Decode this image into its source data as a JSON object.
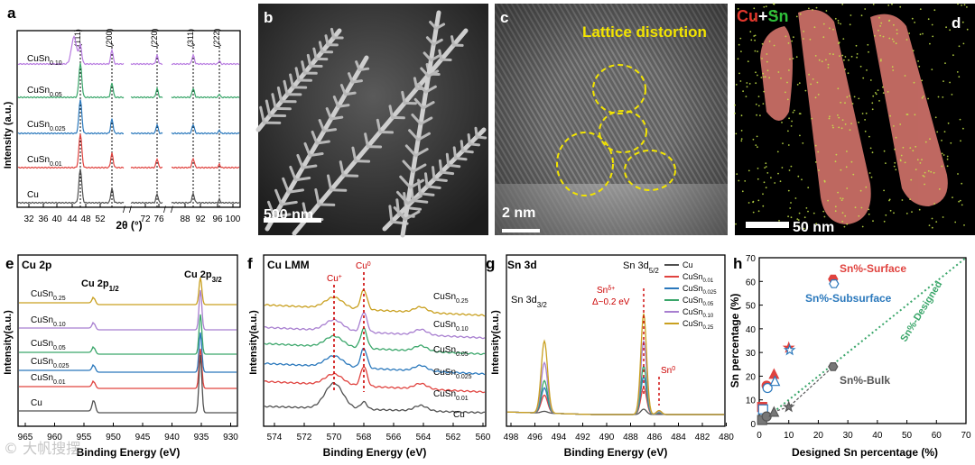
{
  "colors": {
    "cu": "#505050",
    "s001": "#e0433f",
    "s0025": "#2a78bc",
    "s005": "#3aa66a",
    "s010": "#a87fd0",
    "s025": "#c9a020",
    "purple": "#b87be0",
    "green_dot": "#2f8f3a"
  },
  "panel_a": {
    "label": "a",
    "peaks": [
      "(111)",
      "(200)",
      "(220)",
      "(311)",
      "(222)"
    ],
    "samples": [
      "Cu",
      "CuSn",
      "CuSn",
      "CuSn",
      "CuSn"
    ],
    "subs": [
      "",
      "0.01",
      "0.025",
      "0.05",
      "0.10"
    ],
    "ylabel": "Intensity (a.u.)",
    "xlabel": "2θ (°)",
    "ticks": [
      "32",
      "36",
      "40",
      "44",
      "48",
      "52",
      "72",
      "76",
      "88",
      "92",
      "96",
      "100"
    ]
  },
  "panel_b": {
    "label": "b",
    "scale": "500 nm"
  },
  "panel_c": {
    "label": "c",
    "scale": "2 nm",
    "annotation": "Lattice distortion"
  },
  "panel_d": {
    "label": "d",
    "legend_cu": "Cu",
    "legend_plus": "+",
    "legend_sn": "Sn",
    "scale": "50 nm"
  },
  "panel_e": {
    "label": "e",
    "title": "Cu 2p",
    "peak1": "Cu 2p",
    "peak1_sub": "1/2",
    "peak2": "Cu 2p",
    "peak2_sub": "3/2",
    "samples": [
      "CuSn",
      "CuSn",
      "CuSn",
      "CuSn",
      "CuSn",
      "Cu"
    ],
    "subs": [
      "0.25",
      "0.10",
      "0.05",
      "0.025",
      "0.01",
      ""
    ],
    "ylabel": "Intensity(a.u.)",
    "xlabel": "Binding Energy (eV)",
    "ticks": [
      "965",
      "960",
      "955",
      "950",
      "945",
      "940",
      "935",
      "930"
    ]
  },
  "panel_f": {
    "label": "f",
    "title": "Cu LMM",
    "peak_plus": "Cu",
    "peak_plus_sup": "+",
    "peak0": "Cu",
    "peak0_sup": "0",
    "samples": [
      "CuSn",
      "CuSn",
      "CuSn",
      "CuSn",
      "CuSn",
      "Cu"
    ],
    "subs": [
      "0.25",
      "0.10",
      "0.05",
      "0.025",
      "0.01",
      ""
    ],
    "ylabel": "Intensity(a.u.)",
    "xlabel": "Binding Energy (eV)",
    "ticks": [
      "574",
      "572",
      "570",
      "568",
      "566",
      "564",
      "562",
      "560"
    ]
  },
  "panel_g": {
    "label": "g",
    "title": "Sn 3d",
    "peak_l": "Sn 3d",
    "peak_l_sub": "3/2",
    "peak_r": "Sn 3d",
    "peak_r_sub": "5/2",
    "sn_delta": "Sn",
    "sn_delta_sup": "δ+",
    "delta": "Δ~0.2 eV",
    "sn0": "Sn",
    "sn0_sup": "0",
    "legend": [
      "Cu",
      "CuSn",
      "CuSn",
      "CuSn",
      "CuSn",
      "CuSn"
    ],
    "legend_subs": [
      "",
      "0.01",
      "0.025",
      "0.05",
      "0.10",
      "0.25"
    ],
    "ylabel": "Intensity(a.u.)",
    "xlabel": "Binding Energy (eV)",
    "ticks": [
      "498",
      "496",
      "494",
      "492",
      "490",
      "488",
      "486",
      "484",
      "482",
      "480"
    ]
  },
  "panel_h": {
    "label": "h",
    "ylabel": "Sn percentage (%)",
    "xlabel": "Designed Sn percentage (%)",
    "label_surface": "Sn%-Surface",
    "label_subsurface": "Sn%-Subsurface",
    "label_bulk": "Sn%-Bulk",
    "label_designed": "Sn%-Designed",
    "xticks": [
      "0",
      "10",
      "20",
      "30",
      "40",
      "50",
      "60",
      "70"
    ],
    "yticks": [
      "0",
      "10",
      "20",
      "30",
      "40",
      "50",
      "60",
      "70"
    ]
  },
  "watermark": "© 大帆搜摆",
  "chart_data": [
    {
      "type": "line",
      "panel": "h",
      "title": "",
      "xlabel": "Designed Sn percentage (%)",
      "ylabel": "Sn percentage (%)",
      "xlim": [
        0,
        70
      ],
      "ylim": [
        0,
        70
      ],
      "series": [
        {
          "name": "Sn%-Surface",
          "x": [
            1,
            2.5,
            5,
            10,
            25
          ],
          "y": [
            7,
            16,
            21,
            32,
            61
          ]
        },
        {
          "name": "Sn%-Subsurface",
          "x": [
            1,
            2.5,
            5,
            10,
            25
          ],
          "y": [
            6,
            15,
            18,
            31,
            59
          ]
        },
        {
          "name": "Sn%-Bulk",
          "x": [
            1,
            2.5,
            5,
            10,
            25
          ],
          "y": [
            1.5,
            3,
            5,
            7,
            24
          ]
        },
        {
          "name": "Sn%-Designed",
          "x": [
            0,
            70
          ],
          "y": [
            0,
            70
          ]
        }
      ]
    }
  ]
}
